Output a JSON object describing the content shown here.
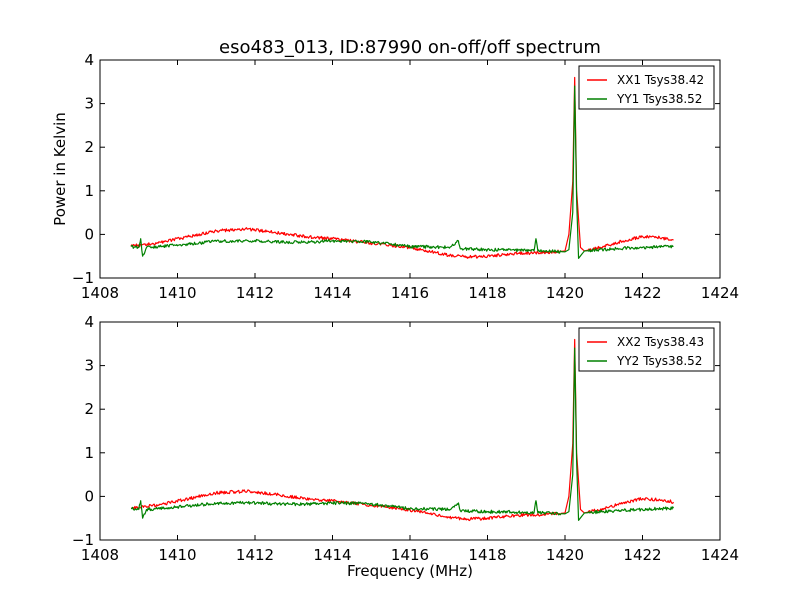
{
  "chart_data": {
    "title": "eso483_013, ID:87990 on-off/off spectrum",
    "xlabel": "Frequency (MHz)",
    "ylabel": "Power in Kelvin",
    "xlim": [
      1408,
      1424
    ],
    "ylim": [
      -1,
      4
    ],
    "xticks": [
      1408,
      1410,
      1412,
      1414,
      1416,
      1418,
      1420,
      1422,
      1424
    ],
    "yticks": [
      -1,
      0,
      1,
      2,
      3,
      4
    ],
    "xtick_labels": [
      "1408",
      "1410",
      "1412",
      "1414",
      "1416",
      "1418",
      "1420",
      "1422",
      "1424"
    ],
    "ytick_labels": [
      "−1",
      "0",
      "1",
      "2",
      "3",
      "4"
    ],
    "colors": {
      "red": "#ff0000",
      "green": "#008000"
    },
    "legend_position": "top-right",
    "panels": [
      {
        "type": "line",
        "series": [
          {
            "name": "XX1 Tsys38.42",
            "color": "#ff0000",
            "x": [
              1408.8,
              1409.5,
              1410.3,
              1411.0,
              1411.8,
              1412.5,
              1413.3,
              1414.0,
              1414.8,
              1415.5,
              1416.3,
              1417.0,
              1417.5,
              1418.0,
              1418.8,
              1419.5,
              1420.0,
              1420.1,
              1420.2,
              1420.25,
              1420.3,
              1420.4,
              1420.5,
              1421.0,
              1421.5,
              1422.0,
              1422.5,
              1422.8
            ],
            "y": [
              -0.27,
              -0.2,
              -0.05,
              0.08,
              0.12,
              0.05,
              -0.05,
              -0.1,
              -0.18,
              -0.25,
              -0.35,
              -0.48,
              -0.52,
              -0.5,
              -0.43,
              -0.42,
              -0.38,
              0.0,
              1.2,
              3.6,
              1.0,
              -0.3,
              -0.38,
              -0.28,
              -0.15,
              -0.05,
              -0.08,
              -0.13
            ]
          },
          {
            "name": "YY1 Tsys38.52",
            "color": "#008000",
            "x": [
              1408.8,
              1409.0,
              1409.05,
              1409.1,
              1409.2,
              1409.5,
              1410.3,
              1411.0,
              1411.8,
              1412.5,
              1413.3,
              1414.0,
              1414.8,
              1415.5,
              1416.0,
              1416.3,
              1417.0,
              1417.25,
              1417.3,
              1418.0,
              1418.8,
              1419.2,
              1419.25,
              1419.3,
              1419.5,
              1420.0,
              1420.1,
              1420.2,
              1420.25,
              1420.3,
              1420.35,
              1420.5,
              1421.0,
              1421.5,
              1422.0,
              1422.5,
              1422.8
            ],
            "y": [
              -0.28,
              -0.3,
              -0.1,
              -0.5,
              -0.3,
              -0.28,
              -0.22,
              -0.16,
              -0.14,
              -0.17,
              -0.18,
              -0.15,
              -0.16,
              -0.22,
              -0.28,
              -0.28,
              -0.3,
              -0.15,
              -0.33,
              -0.35,
              -0.36,
              -0.38,
              -0.1,
              -0.38,
              -0.38,
              -0.4,
              -0.35,
              0.5,
              3.4,
              0.8,
              -0.55,
              -0.38,
              -0.35,
              -0.32,
              -0.3,
              -0.28,
              -0.27
            ]
          }
        ]
      },
      {
        "type": "line",
        "series": [
          {
            "name": "XX2 Tsys38.43",
            "color": "#ff0000",
            "x": [
              1408.8,
              1409.5,
              1410.3,
              1411.0,
              1411.8,
              1412.5,
              1413.3,
              1414.0,
              1414.8,
              1415.5,
              1416.3,
              1417.0,
              1417.5,
              1418.0,
              1418.8,
              1419.5,
              1420.0,
              1420.1,
              1420.2,
              1420.25,
              1420.3,
              1420.4,
              1420.5,
              1421.0,
              1421.5,
              1422.0,
              1422.5,
              1422.8
            ],
            "y": [
              -0.27,
              -0.2,
              -0.05,
              0.08,
              0.12,
              0.05,
              -0.05,
              -0.1,
              -0.18,
              -0.25,
              -0.35,
              -0.48,
              -0.52,
              -0.5,
              -0.43,
              -0.42,
              -0.38,
              0.0,
              1.2,
              3.6,
              1.0,
              -0.3,
              -0.38,
              -0.28,
              -0.15,
              -0.05,
              -0.08,
              -0.13
            ]
          },
          {
            "name": "YY2 Tsys38.52",
            "color": "#008000",
            "x": [
              1408.8,
              1409.0,
              1409.05,
              1409.1,
              1409.2,
              1409.5,
              1410.3,
              1411.0,
              1411.8,
              1412.5,
              1413.3,
              1414.0,
              1414.8,
              1415.5,
              1416.0,
              1416.3,
              1417.0,
              1417.25,
              1417.3,
              1418.0,
              1418.8,
              1419.2,
              1419.25,
              1419.3,
              1419.5,
              1420.0,
              1420.1,
              1420.2,
              1420.25,
              1420.3,
              1420.35,
              1420.5,
              1421.0,
              1421.5,
              1422.0,
              1422.5,
              1422.8
            ],
            "y": [
              -0.28,
              -0.3,
              -0.1,
              -0.5,
              -0.3,
              -0.28,
              -0.22,
              -0.16,
              -0.14,
              -0.17,
              -0.18,
              -0.15,
              -0.16,
              -0.22,
              -0.28,
              -0.28,
              -0.3,
              -0.15,
              -0.33,
              -0.35,
              -0.36,
              -0.38,
              -0.1,
              -0.38,
              -0.38,
              -0.4,
              -0.35,
              0.5,
              3.4,
              0.8,
              -0.55,
              -0.38,
              -0.35,
              -0.32,
              -0.3,
              -0.28,
              -0.27
            ]
          }
        ]
      }
    ]
  }
}
